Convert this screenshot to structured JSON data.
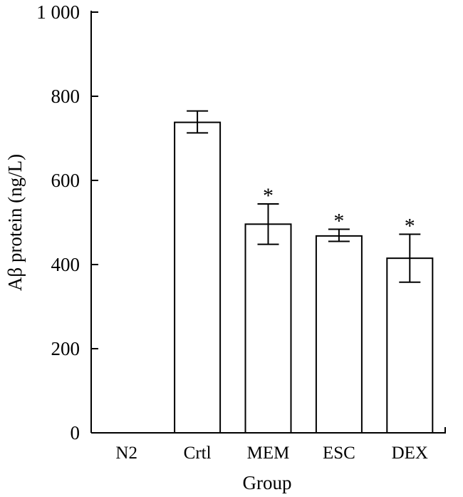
{
  "chart_data": {
    "type": "bar",
    "title": "",
    "xlabel": "Group",
    "ylabel": "Aβ protein (ng/L)",
    "ylim": [
      0,
      1000
    ],
    "yticks": [
      0,
      200,
      400,
      600,
      800,
      1000
    ],
    "ytick_labels": [
      "0",
      "200",
      "400",
      "600",
      "800",
      "1 000"
    ],
    "categories": [
      "N2",
      "Crtl",
      "MEM",
      "ESC",
      "DEX"
    ],
    "values": [
      0,
      738,
      496,
      468,
      415
    ],
    "error_low": [
      0,
      713,
      448,
      455,
      358
    ],
    "error_high": [
      0,
      765,
      544,
      484,
      472
    ],
    "significance": [
      "",
      "",
      "*",
      "*",
      "*"
    ],
    "grid": false,
    "legend": "none",
    "colors": {
      "bar_fill": "#ffffff",
      "stroke": "#000000"
    }
  }
}
